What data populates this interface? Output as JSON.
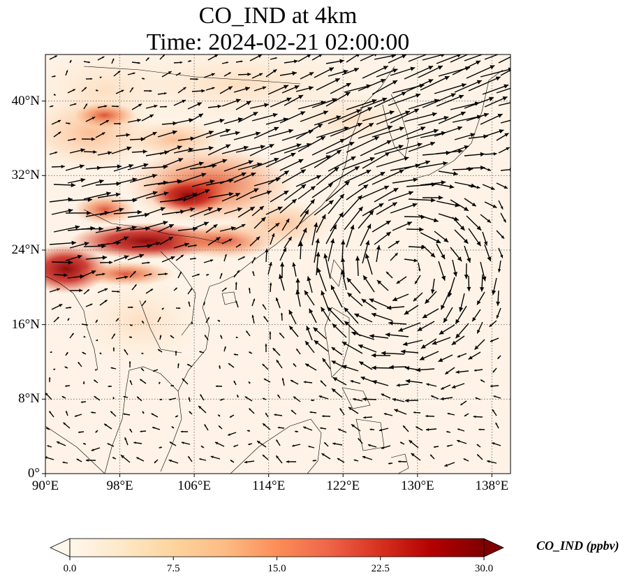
{
  "title": {
    "line1": "CO_IND at 4km",
    "line2": "Time: 2024-02-21 02:00:00"
  },
  "map": {
    "lon_range": [
      90,
      140
    ],
    "lat_range": [
      0,
      45
    ],
    "lon_ticks": [
      90,
      98,
      106,
      114,
      122,
      130,
      138
    ],
    "lat_ticks": [
      0,
      8,
      16,
      24,
      32,
      40
    ],
    "lon_labels": [
      "90°E",
      "98°E",
      "106°E",
      "114°E",
      "122°E",
      "130°E",
      "138°E"
    ],
    "lat_labels": [
      "0°",
      "8°N",
      "16°N",
      "24°N",
      "32°N",
      "40°N"
    ],
    "gridlines": "dotted",
    "colormap": "OrRd",
    "overlay": "wind vectors (quiver)",
    "anticyclone_center": {
      "lon": 128,
      "lat": 22
    }
  },
  "colorbar": {
    "min": 0,
    "max": 30,
    "ticks": [
      "0.0",
      "7.5",
      "15.0",
      "22.5",
      "30.0"
    ],
    "label": "CO_IND (ppbv)",
    "extend": "both",
    "colors": [
      "#fff7ec",
      "#fee8c8",
      "#fdd49e",
      "#fdbb84",
      "#fc8d59",
      "#ef6548",
      "#d7301f",
      "#b30000",
      "#7f0000"
    ]
  }
}
